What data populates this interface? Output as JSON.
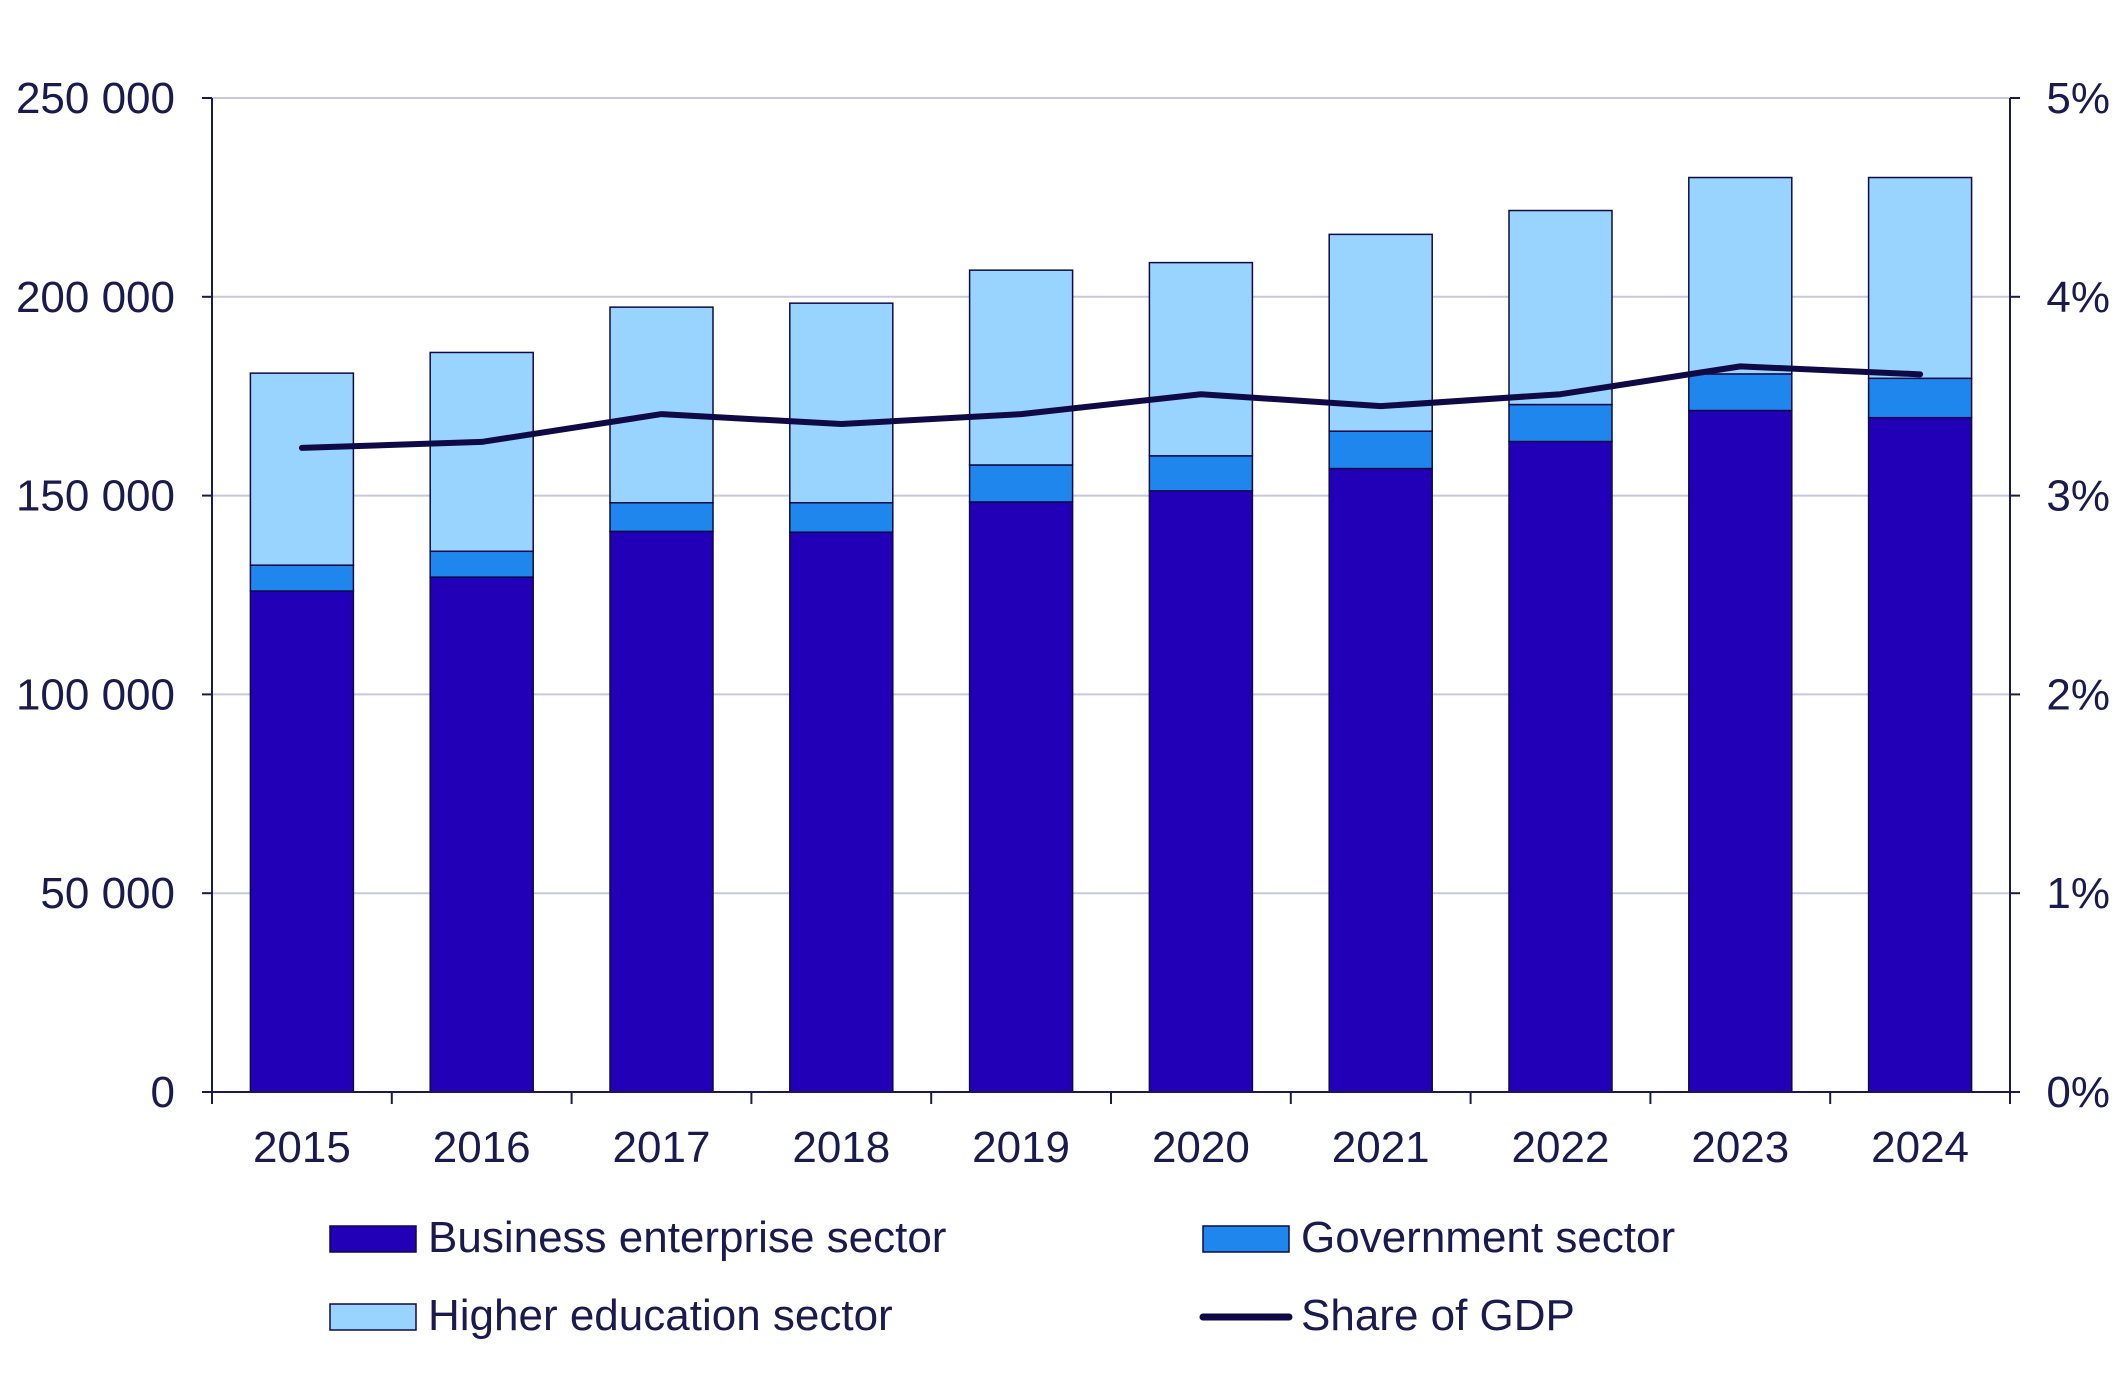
{
  "chart_data": {
    "type": "bar",
    "stacked": true,
    "categories": [
      "2015",
      "2016",
      "2017",
      "2018",
      "2019",
      "2020",
      "2021",
      "2022",
      "2023",
      "2024"
    ],
    "series": [
      {
        "name": "Business enterprise sector",
        "type": "bar",
        "axis": "left",
        "color": "#2200b8",
        "values": [
          126000,
          129500,
          141000,
          140800,
          148400,
          151200,
          156800,
          163600,
          171400,
          169600
        ]
      },
      {
        "name": "Government sector",
        "type": "bar",
        "axis": "left",
        "color": "#1f86ee",
        "values": [
          6500,
          6500,
          7200,
          7400,
          9300,
          8800,
          9400,
          9300,
          9200,
          9900
        ]
      },
      {
        "name": "Higher education sector",
        "type": "bar",
        "axis": "left",
        "color": "#99d3ff",
        "values": [
          48300,
          50000,
          49200,
          50200,
          49000,
          48600,
          49500,
          48800,
          49400,
          50500
        ]
      },
      {
        "name": "Share of GDP",
        "type": "line",
        "axis": "right",
        "color": "#0f0a45",
        "values": [
          3.24,
          3.27,
          3.41,
          3.36,
          3.41,
          3.51,
          3.45,
          3.51,
          3.65,
          3.61
        ]
      }
    ],
    "y_left": {
      "lim": [
        0,
        250000
      ],
      "ticks": [
        0,
        50000,
        100000,
        150000,
        200000,
        250000
      ],
      "tick_labels": [
        "0",
        "50 000",
        "100 000",
        "150 000",
        "200 000",
        "250 000"
      ]
    },
    "y_right": {
      "lim": [
        0,
        5
      ],
      "ticks": [
        0,
        1,
        2,
        3,
        4,
        5
      ],
      "tick_labels": [
        "0%",
        "1%",
        "2%",
        "3%",
        "4%",
        "5%"
      ]
    },
    "grid": true,
    "legend_position": "bottom",
    "title": "",
    "xlabel": "",
    "ylabel": ""
  }
}
